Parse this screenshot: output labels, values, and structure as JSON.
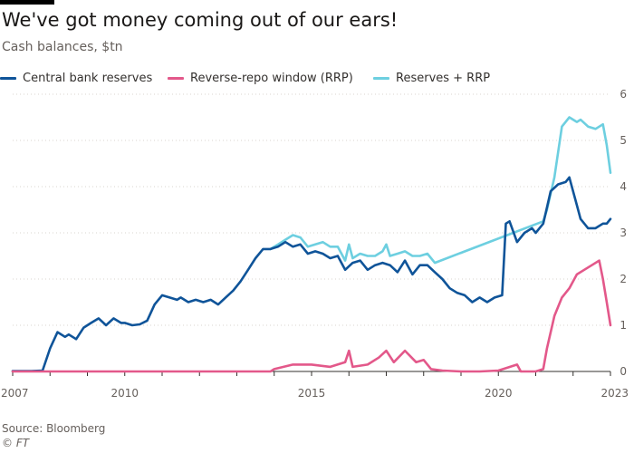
{
  "header": {
    "title": "We've got money coming out of our ears!",
    "subtitle": "Cash balances, $tn"
  },
  "footer": {
    "source": "Source: Bloomberg",
    "credit": "© FT"
  },
  "chart_data": {
    "type": "line",
    "title": "We've got money coming out of our ears!",
    "subtitle": "Cash balances, $tn",
    "xlabel": "",
    "ylabel": "",
    "xlim": [
      2007,
      2023
    ],
    "ylim": [
      0,
      6
    ],
    "x_ticks": [
      "2007",
      "2010",
      "2015",
      "2020",
      "2023"
    ],
    "y_ticks": [
      "0",
      "1",
      "2",
      "3",
      "4",
      "5",
      "6"
    ],
    "grid": "horizontal dotted",
    "legend_position": "top",
    "series": [
      {
        "name": "Central bank reserves",
        "color": "#0f5499",
        "x": [
          2007.0,
          2007.5,
          2007.8,
          2008.0,
          2008.2,
          2008.4,
          2008.5,
          2008.7,
          2008.9,
          2009.1,
          2009.3,
          2009.5,
          2009.7,
          2009.9,
          2010.0,
          2010.2,
          2010.4,
          2010.6,
          2010.8,
          2011.0,
          2011.2,
          2011.4,
          2011.5,
          2011.7,
          2011.9,
          2012.1,
          2012.3,
          2012.5,
          2012.7,
          2012.9,
          2013.1,
          2013.3,
          2013.5,
          2013.7,
          2013.9,
          2014.1,
          2014.3,
          2014.5,
          2014.7,
          2014.9,
          2015.1,
          2015.3,
          2015.5,
          2015.7,
          2015.9,
          2016.1,
          2016.3,
          2016.5,
          2016.7,
          2016.9,
          2017.1,
          2017.3,
          2017.5,
          2017.7,
          2017.9,
          2018.1,
          2018.3,
          2018.5,
          2018.7,
          2018.9,
          2019.1,
          2019.3,
          2019.5,
          2019.7,
          2019.9,
          2020.1,
          2020.2,
          2020.3,
          2020.5,
          2020.7,
          2020.9,
          2021.0,
          2021.2,
          2021.4,
          2021.6,
          2021.8,
          2021.9,
          2022.1,
          2022.2,
          2022.4,
          2022.6,
          2022.8,
          2022.9,
          2023.0
        ],
        "values": [
          0.01,
          0.01,
          0.02,
          0.5,
          0.85,
          0.75,
          0.8,
          0.7,
          0.95,
          1.05,
          1.15,
          1.0,
          1.15,
          1.05,
          1.05,
          1.0,
          1.02,
          1.1,
          1.45,
          1.65,
          1.6,
          1.55,
          1.6,
          1.5,
          1.55,
          1.5,
          1.55,
          1.45,
          1.6,
          1.75,
          1.95,
          2.2,
          2.45,
          2.65,
          2.65,
          2.7,
          2.8,
          2.7,
          2.75,
          2.55,
          2.6,
          2.55,
          2.45,
          2.5,
          2.2,
          2.35,
          2.4,
          2.2,
          2.3,
          2.35,
          2.3,
          2.15,
          2.4,
          2.1,
          2.3,
          2.3,
          2.15,
          2.0,
          1.8,
          1.7,
          1.65,
          1.5,
          1.6,
          1.5,
          1.6,
          1.65,
          3.2,
          3.25,
          2.8,
          3.0,
          3.1,
          3.0,
          3.2,
          3.9,
          4.05,
          4.1,
          4.2,
          3.6,
          3.3,
          3.1,
          3.1,
          3.2,
          3.2,
          3.3
        ]
      },
      {
        "name": "Reverse-repo window (RRP)",
        "color": "#e3588a",
        "x": [
          2007.0,
          2013.9,
          2014.0,
          2014.5,
          2015.0,
          2015.5,
          2015.9,
          2016.0,
          2016.1,
          2016.5,
          2016.8,
          2017.0,
          2017.2,
          2017.5,
          2017.8,
          2018.0,
          2018.2,
          2018.5,
          2019.0,
          2019.5,
          2020.0,
          2020.5,
          2020.6,
          2020.7,
          2021.0,
          2021.2,
          2021.3,
          2021.5,
          2021.7,
          2021.9,
          2022.1,
          2022.3,
          2022.5,
          2022.7,
          2022.8,
          2022.9,
          2023.0
        ],
        "values": [
          0.0,
          0.0,
          0.05,
          0.15,
          0.15,
          0.1,
          0.2,
          0.45,
          0.1,
          0.15,
          0.3,
          0.45,
          0.2,
          0.45,
          0.2,
          0.25,
          0.05,
          0.02,
          0.0,
          0.0,
          0.02,
          0.15,
          0.0,
          0.0,
          0.0,
          0.05,
          0.5,
          1.2,
          1.6,
          1.8,
          2.1,
          2.2,
          2.3,
          2.4,
          2.0,
          1.5,
          1.0
        ]
      },
      {
        "name": "Reserves + RRP",
        "color": "#6dcfe0",
        "x": [
          2013.9,
          2014.1,
          2014.3,
          2014.5,
          2014.7,
          2014.9,
          2015.1,
          2015.3,
          2015.5,
          2015.7,
          2015.9,
          2016.0,
          2016.1,
          2016.3,
          2016.5,
          2016.7,
          2016.9,
          2017.0,
          2017.1,
          2017.3,
          2017.5,
          2017.7,
          2017.9,
          2018.1,
          2018.3,
          2021.2,
          2021.3,
          2021.5,
          2021.7,
          2021.9,
          2022.1,
          2022.2,
          2022.4,
          2022.6,
          2022.8,
          2022.9,
          2023.0
        ],
        "values": [
          2.65,
          2.75,
          2.85,
          2.95,
          2.9,
          2.7,
          2.75,
          2.8,
          2.7,
          2.7,
          2.4,
          2.75,
          2.45,
          2.55,
          2.5,
          2.5,
          2.6,
          2.75,
          2.5,
          2.55,
          2.6,
          2.5,
          2.5,
          2.55,
          2.35,
          3.25,
          3.5,
          4.2,
          5.3,
          5.5,
          5.4,
          5.45,
          5.3,
          5.25,
          5.35,
          4.9,
          4.3
        ]
      }
    ]
  }
}
